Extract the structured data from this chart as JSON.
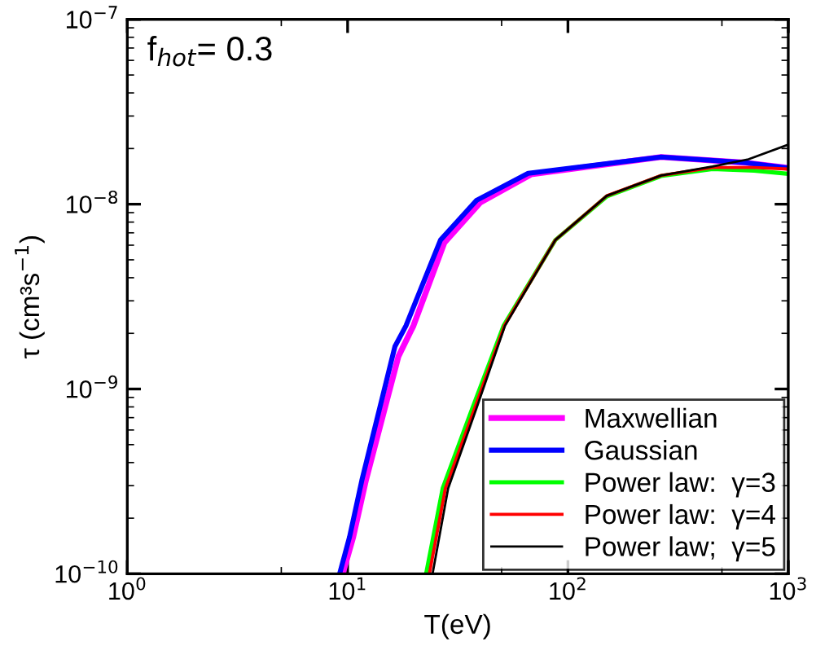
{
  "chart_data": {
    "type": "line",
    "xlabel": "T(eV)",
    "ylabel": "τ (cm³s$^{−1}$)",
    "log": "xy",
    "grid": false,
    "legend": "bottom right",
    "marker": "none",
    "line_style": "solid",
    "xlim": [
      1,
      1000
    ],
    "ylim": [
      1e-10,
      1e-07
    ],
    "xticks": [
      {
        "value": 1,
        "label": "10$^{0}$"
      },
      {
        "value": 10,
        "label": "10$^{1}$"
      },
      {
        "value": 100,
        "label": "10$^{2}$"
      },
      {
        "value": 1000,
        "label": "10$^{3}$"
      }
    ],
    "yticks": [
      {
        "value": 1e-10,
        "label": "10$^{−10}$"
      },
      {
        "value": 1e-09,
        "label": "10$^{−9}$"
      },
      {
        "value": 1e-08,
        "label": "10$^{−8}$"
      },
      {
        "value": 1e-07,
        "label": "10$^{−7}$"
      }
    ],
    "annotations": [
      "f$_{hot}$= 0.3"
    ],
    "series": [
      {
        "name": "Maxwellian",
        "color": "#ff00ff",
        "x": [
          9.5,
          10.6,
          12.1,
          17,
          19.9,
          27.5,
          40,
          68,
          265,
          630,
          1000
        ],
        "values": [
          1e-10,
          1.58e-10,
          3.2e-10,
          1.5e-09,
          2.2e-09,
          6.2e-09,
          1.02e-08,
          1.45e-08,
          1.8e-08,
          1.68e-08,
          1.57e-08
        ]
      },
      {
        "name": "Gaussian",
        "color": "#0000ff",
        "x": [
          9.2,
          10.2,
          11.6,
          16.4,
          18.4,
          26.4,
          38.5,
          66,
          265,
          630,
          1000
        ],
        "values": [
          1e-10,
          1.58e-10,
          3.2e-10,
          1.7e-09,
          2.2e-09,
          6.4e-09,
          1.05e-08,
          1.47e-08,
          1.8e-08,
          1.68e-08,
          1.57e-08
        ]
      },
      {
        "name": "Power law:  γ=3",
        "color": "#00ff00",
        "x": [
          22.7,
          27,
          37,
          51,
          87.7,
          150,
          265,
          453,
          700,
          1000
        ],
        "values": [
          1e-10,
          2.9e-10,
          8e-10,
          2.2e-09,
          6.4e-09,
          1.1e-08,
          1.42e-08,
          1.55e-08,
          1.52e-08,
          1.46e-08
        ]
      },
      {
        "name": "Power law:  γ=4",
        "color": "#ff0000",
        "x": [
          23.5,
          27.8,
          37.8,
          51.5,
          87.7,
          150,
          265,
          453,
          700,
          1000
        ],
        "values": [
          1e-10,
          2.9e-10,
          7.9e-10,
          2.2e-09,
          6.4e-09,
          1.11e-08,
          1.43e-08,
          1.58e-08,
          1.58e-08,
          1.55e-08
        ]
      },
      {
        "name": "Power law;  γ=5",
        "color": "#000000",
        "x": [
          24.3,
          28.6,
          38.5,
          51.8,
          87.7,
          150,
          265,
          453,
          660,
          1000
        ],
        "values": [
          1e-10,
          2.9e-10,
          7.9e-10,
          2.2e-09,
          6.4e-09,
          1.11e-08,
          1.43e-08,
          1.6e-08,
          1.75e-08,
          2.1e-08
        ]
      }
    ]
  }
}
